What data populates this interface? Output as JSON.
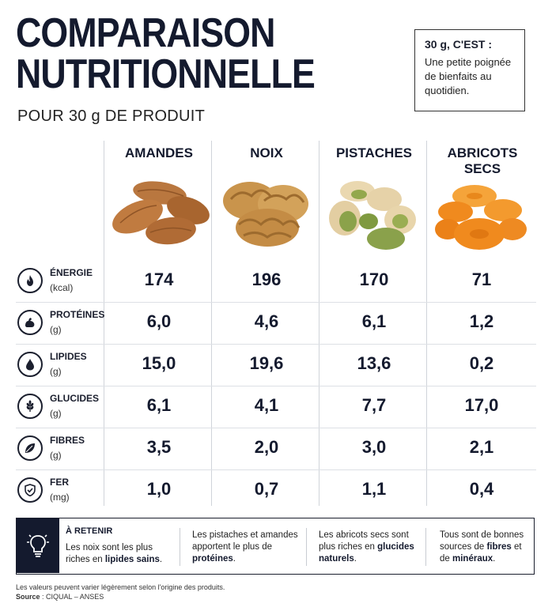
{
  "header": {
    "title_line1": "COMPARAISON",
    "title_line2": "NUTRITIONNELLE",
    "subtitle": "POUR 30 g DE PRODUIT"
  },
  "infobox": {
    "heading": "30 g, C'EST :",
    "text": "Une petite poignée de bienfaits au quotidien."
  },
  "columns": [
    "AMANDES",
    "NOIX",
    "PISTACHES",
    "ABRICOTS SECS"
  ],
  "rows": [
    {
      "name": "ÉNERGIE",
      "unit": "(kcal)",
      "icon": "flame-icon",
      "values": [
        "174",
        "196",
        "170",
        "71"
      ]
    },
    {
      "name": "PROTÉINES",
      "unit": "(g)",
      "icon": "muscle-icon",
      "values": [
        "6,0",
        "4,6",
        "6,1",
        "1,2"
      ]
    },
    {
      "name": "LIPIDES",
      "unit": "(g)",
      "icon": "drop-icon",
      "values": [
        "15,0",
        "19,6",
        "13,6",
        "0,2"
      ]
    },
    {
      "name": "GLUCIDES",
      "unit": "(g)",
      "icon": "wheat-icon",
      "values": [
        "6,1",
        "4,1",
        "7,7",
        "17,0"
      ]
    },
    {
      "name": "FIBRES",
      "unit": "(g)",
      "icon": "leaf-icon",
      "values": [
        "3,5",
        "2,0",
        "3,0",
        "2,1"
      ]
    },
    {
      "name": "FER",
      "unit": "(mg)",
      "icon": "shield-check-icon",
      "values": [
        "1,0",
        "0,7",
        "1,1",
        "0,4"
      ]
    }
  ],
  "takeaway": {
    "heading": "À RETENIR",
    "c1_pre": "Les noix sont les plus riches en ",
    "c1_bold": "lipides sains",
    "c1_post": ".",
    "c2_pre": "Les pistaches et amandes apportent le plus de ",
    "c2_bold": "protéines",
    "c2_post": ".",
    "c3_pre": "Les abricots secs sont plus riches en ",
    "c3_bold": "glucides naturels",
    "c3_post": ".",
    "c4_pre": "Tous sont de bonnes sources de ",
    "c4_bold1": "fibres",
    "c4_mid": " et de ",
    "c4_bold2": "minéraux",
    "c4_post": "."
  },
  "footer": {
    "note": "Les valeurs peuvent varier légèrement selon l'origine des produits.",
    "source_label": "Source",
    "source_text": " : CIQUAL – ANSES"
  },
  "colors": {
    "navy": "#141a2e",
    "almond": "#b9773f",
    "walnut": "#c9944c",
    "pistachio_shell": "#e6d2a8",
    "pistachio_nut": "#8ba24a",
    "apricot": "#f08a1e"
  }
}
